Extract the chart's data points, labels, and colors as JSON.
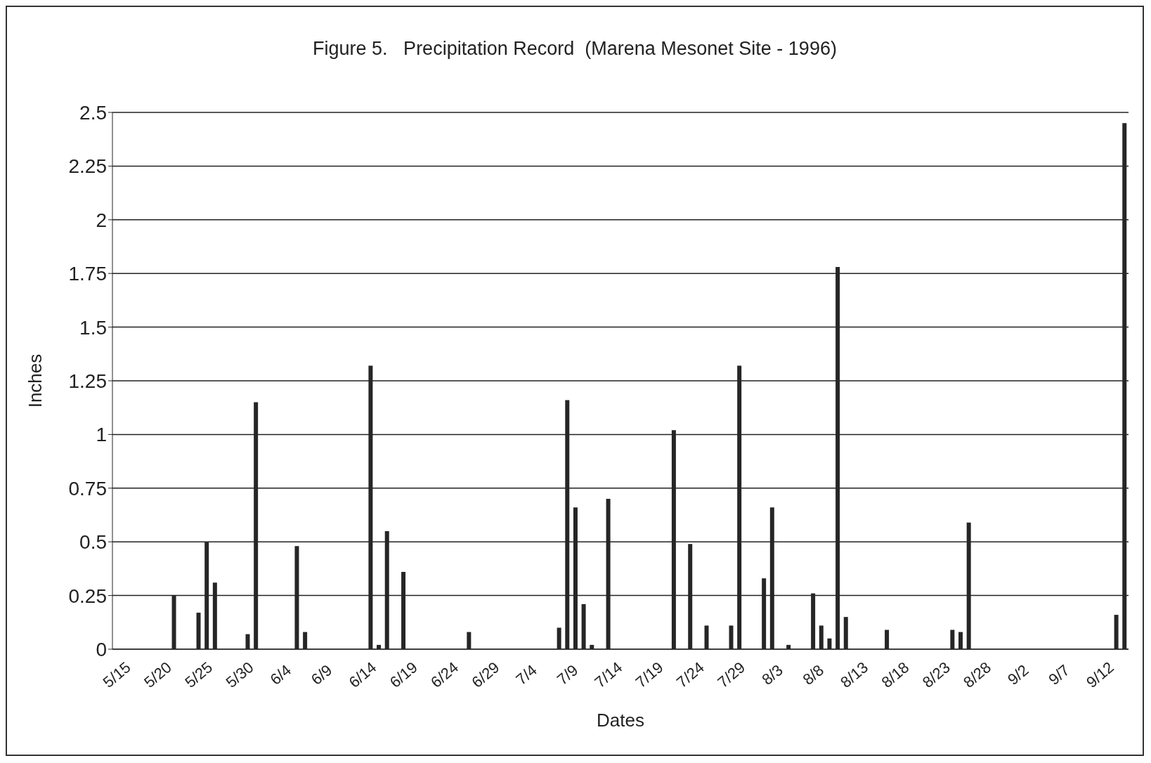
{
  "chart_data": {
    "type": "bar",
    "title": "Figure 5.   Precipitation Record  (Marena Mesonet Site - 1996)",
    "xlabel": "Dates",
    "ylabel": "Inches",
    "categories": [
      "5/15",
      null,
      null,
      null,
      null,
      "5/20",
      null,
      null,
      null,
      null,
      "5/25",
      null,
      null,
      null,
      null,
      "5/30",
      null,
      null,
      null,
      null,
      "6/4",
      null,
      null,
      null,
      null,
      "6/9",
      null,
      null,
      null,
      null,
      "6/14",
      null,
      null,
      null,
      null,
      "6/19",
      null,
      null,
      null,
      null,
      "6/24",
      null,
      null,
      null,
      null,
      "6/29",
      null,
      null,
      null,
      null,
      "7/4",
      null,
      null,
      null,
      null,
      "7/9",
      null,
      null,
      null,
      null,
      "7/14",
      null,
      null,
      null,
      null,
      "7/19",
      null,
      null,
      null,
      null,
      "7/24",
      null,
      null,
      null,
      null,
      "7/29",
      null,
      null,
      null,
      null,
      "8/3",
      null,
      null,
      null,
      null,
      "8/8",
      null,
      null,
      null,
      null,
      "8/13",
      null,
      null,
      null,
      null,
      "8/18",
      null,
      null,
      null,
      null,
      "8/23",
      null,
      null,
      null,
      null,
      "8/28",
      null,
      null,
      null,
      null,
      "9/2",
      null,
      null,
      null,
      null,
      "9/7",
      null,
      null,
      null,
      null,
      "9/12",
      null,
      null,
      null
    ],
    "values": [
      0,
      0,
      0,
      0,
      0,
      0,
      0,
      0.25,
      0,
      0,
      0.17,
      0.5,
      0.31,
      0,
      0,
      0,
      0.07,
      1.15,
      0,
      0,
      0,
      0,
      0.48,
      0.08,
      0,
      0,
      0,
      0,
      0,
      0,
      0,
      1.32,
      0.02,
      0.55,
      0,
      0.36,
      0,
      0,
      0,
      0,
      0,
      0,
      0,
      0.08,
      0,
      0,
      0,
      0,
      0,
      0,
      0,
      0,
      0,
      0,
      0.1,
      1.16,
      0.66,
      0.21,
      0.02,
      0,
      0.7,
      0,
      0,
      0,
      0,
      0,
      0,
      0,
      1.02,
      0,
      0.49,
      0,
      0.11,
      0,
      0,
      0.11,
      1.32,
      0,
      0,
      0.33,
      0.66,
      0,
      0.02,
      0,
      0,
      0.26,
      0.11,
      0.05,
      1.78,
      0.15,
      0,
      0,
      0,
      0,
      0.09,
      0,
      0,
      0,
      0,
      0,
      0,
      0,
      0.09,
      0.08,
      0.59,
      0,
      0,
      0,
      0,
      0,
      0,
      0,
      0,
      0,
      0,
      0,
      0,
      0,
      0,
      0,
      0,
      0,
      0.16,
      2.45
    ],
    "color": "#262626",
    "ylim": [
      0,
      2.5
    ],
    "yticks": [
      0,
      0.25,
      0.5,
      0.75,
      1,
      1.25,
      1.5,
      1.75,
      2,
      2.25,
      2.5
    ],
    "grid": "y"
  }
}
